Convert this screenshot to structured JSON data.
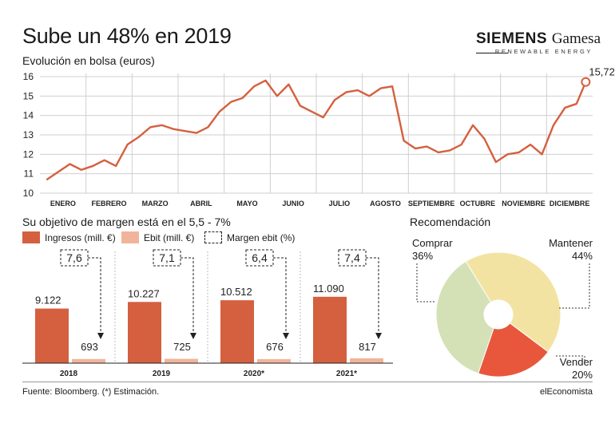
{
  "header": {
    "title": "Sube un 48% en 2019",
    "subtitle": "Evolución en bolsa (euros)"
  },
  "logo": {
    "brand": "SIEMENS",
    "brand2": "Gamesa",
    "tagline": "RENEWABLE ENERGY"
  },
  "colors": {
    "line": "#d4603f",
    "ingresos": "#d4603f",
    "ebit": "#f1b49b",
    "grid": "#cfcfcf",
    "comprar": "#d4e1b7",
    "mantener": "#f3e3a3",
    "vender": "#e8573c"
  },
  "chart_data": [
    {
      "type": "line",
      "title": "Evolución en bolsa (euros)",
      "ylim": [
        10,
        16
      ],
      "yticks": [
        "10",
        "11",
        "12",
        "13",
        "14",
        "15",
        "16"
      ],
      "months": [
        "ENERO",
        "FEBRERO",
        "MARZO",
        "ABRIL",
        "MAYO",
        "JUNIO",
        "JULIO",
        "AGOSTO",
        "SEPTIEMBRE",
        "OCTUBRE",
        "NOVIEMBRE",
        "DICIEMBRE"
      ],
      "x": [
        0,
        0.25,
        0.5,
        0.75,
        1.0,
        1.25,
        1.5,
        1.75,
        2.0,
        2.25,
        2.5,
        2.75,
        3.0,
        3.25,
        3.5,
        3.75,
        4.0,
        4.25,
        4.5,
        4.75,
        5.0,
        5.25,
        5.5,
        5.75,
        6.0,
        6.25,
        6.5,
        6.75,
        7.0,
        7.25,
        7.5,
        7.75,
        8.0,
        8.25,
        8.5,
        8.75,
        9.0,
        9.25,
        9.5,
        9.75,
        10.0,
        10.25,
        10.5,
        10.75,
        11.0,
        11.25,
        11.5,
        11.7
      ],
      "values": [
        10.7,
        11.1,
        11.5,
        11.2,
        11.4,
        11.7,
        11.4,
        12.5,
        12.9,
        13.4,
        13.5,
        13.3,
        13.2,
        13.1,
        13.4,
        14.2,
        14.7,
        14.9,
        15.5,
        15.8,
        15.0,
        15.6,
        14.5,
        14.2,
        13.9,
        14.8,
        15.2,
        15.3,
        15.0,
        15.4,
        15.5,
        12.7,
        12.3,
        12.4,
        12.1,
        12.2,
        12.5,
        13.5,
        12.8,
        11.6,
        12.0,
        12.1,
        12.5,
        12.0,
        13.5,
        14.4,
        14.6,
        15.725
      ],
      "last_label": "15,725"
    },
    {
      "type": "bar",
      "title": "Su objetivo de margen está en el 5,5 - 7%",
      "categories": [
        "2018",
        "2019",
        "2020*",
        "2021*"
      ],
      "series": [
        {
          "name": "Ingresos (mill. €)",
          "values": [
            9122,
            10227,
            10512,
            11090
          ],
          "labels": [
            "9.122",
            "10.227",
            "10.512",
            "11.090"
          ]
        },
        {
          "name": "Ebit (mill. €)",
          "values": [
            693,
            725,
            676,
            817
          ],
          "labels": [
            "693",
            "725",
            "676",
            "817"
          ]
        },
        {
          "name": "Margen ebit (%)",
          "values": [
            7.6,
            7.1,
            6.4,
            7.4
          ],
          "labels": [
            "7,6",
            "7,1",
            "6,4",
            "7,4"
          ]
        }
      ],
      "ylim": [
        0,
        16000
      ]
    },
    {
      "type": "pie",
      "title": "Recomendación",
      "slices": [
        {
          "name": "Mantener",
          "pct": 44,
          "label": "44%"
        },
        {
          "name": "Vender",
          "pct": 20,
          "label": "20%"
        },
        {
          "name": "Comprar",
          "pct": 36,
          "label": "36%"
        }
      ]
    }
  ],
  "footer": {
    "source": "Fuente: Bloomberg. (*) Estimación.",
    "brand": "elEconomista"
  }
}
